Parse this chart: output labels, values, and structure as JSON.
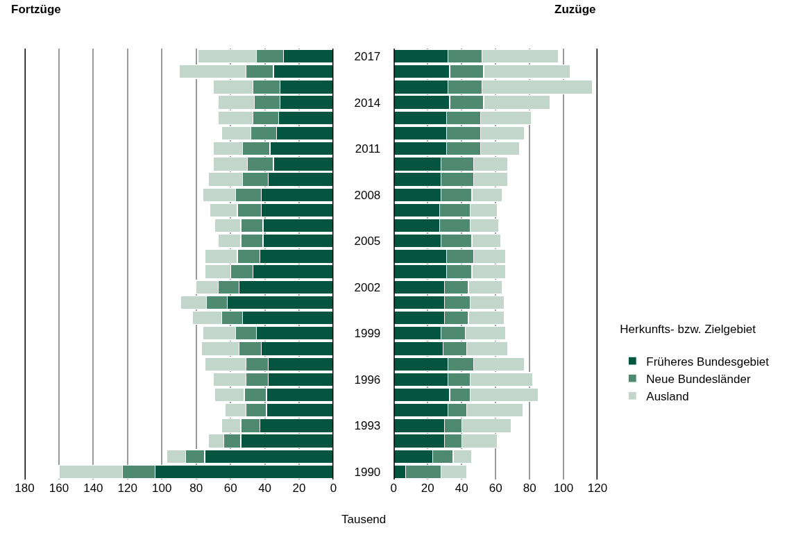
{
  "chart_data": [
    {
      "type": "bar",
      "title": "Fortzüge",
      "orientation": "horizontal",
      "stacked": true,
      "grid": "x",
      "tick_labels": "x",
      "legend": "right",
      "legend_title": "Herkunfts- bzw. Zielgebiet",
      "categories": [
        "2017",
        null,
        null,
        "2014",
        null,
        null,
        "2011",
        null,
        null,
        "2008",
        null,
        null,
        "2005",
        null,
        null,
        "2002",
        null,
        null,
        "1999",
        null,
        null,
        "1996",
        null,
        null,
        "1993",
        null,
        null,
        "1990"
      ],
      "xlim": [
        180,
        0
      ],
      "xticks": [
        180,
        160,
        140,
        120,
        100,
        80,
        60,
        40,
        20,
        0
      ],
      "annotations": [
        "Tausend"
      ],
      "series": [
        {
          "name": "Früheres Bundesgebiet",
          "color": "#04553f",
          "values": [
            29,
            35,
            31,
            31,
            32,
            33,
            37,
            35,
            38,
            42,
            42,
            41,
            41,
            43,
            47,
            55,
            62,
            53,
            45,
            42,
            38,
            38,
            39,
            39,
            43,
            54,
            75,
            104
          ]
        },
        {
          "name": "Neue Bundesländer",
          "color": "#4f8a70",
          "values": [
            16,
            16,
            16,
            15,
            15,
            15,
            16,
            15,
            15,
            15,
            14,
            13,
            13,
            13,
            13,
            12,
            12,
            12,
            12,
            13,
            13,
            13,
            13,
            12,
            11,
            10,
            11,
            19
          ]
        },
        {
          "name": "Ausland",
          "color": "#c3d6cb",
          "values": [
            34,
            39,
            23,
            21,
            20,
            17,
            17,
            20,
            20,
            19,
            16,
            15,
            13,
            19,
            15,
            13,
            15,
            17,
            19,
            22,
            24,
            19,
            17,
            12,
            11,
            9,
            11,
            37
          ]
        }
      ]
    },
    {
      "type": "bar",
      "title": "Zuzüge",
      "orientation": "horizontal",
      "stacked": true,
      "grid": "x",
      "categories": [
        "2017",
        null,
        null,
        "2014",
        null,
        null,
        "2011",
        null,
        null,
        "2008",
        null,
        null,
        "2005",
        null,
        null,
        "2002",
        null,
        null,
        "1999",
        null,
        null,
        "1996",
        null,
        null,
        "1993",
        null,
        null,
        "1990"
      ],
      "xlim": [
        0,
        120
      ],
      "xticks": [
        0,
        20,
        40,
        60,
        80,
        100,
        120
      ],
      "series": [
        {
          "color": "#04553f",
          "values": [
            32,
            33,
            32,
            33,
            31,
            31,
            31,
            28,
            28,
            28,
            27,
            27,
            28,
            31,
            31,
            30,
            30,
            30,
            28,
            29,
            32,
            32,
            33,
            32,
            30,
            30,
            23,
            7
          ]
        },
        {
          "color": "#4f8a70",
          "values": [
            20,
            20,
            20,
            20,
            20,
            20,
            20,
            19,
            19,
            18,
            18,
            18,
            18,
            16,
            15,
            14,
            15,
            14,
            14,
            14,
            15,
            13,
            12,
            11,
            10,
            10,
            12,
            21
          ]
        },
        {
          "color": "#c3d6cb",
          "values": [
            45,
            51,
            65,
            39,
            30,
            26,
            23,
            20,
            20,
            18,
            16,
            17,
            17,
            19,
            20,
            20,
            20,
            21,
            24,
            24,
            30,
            37,
            40,
            33,
            29,
            21,
            11,
            15
          ]
        }
      ]
    }
  ]
}
